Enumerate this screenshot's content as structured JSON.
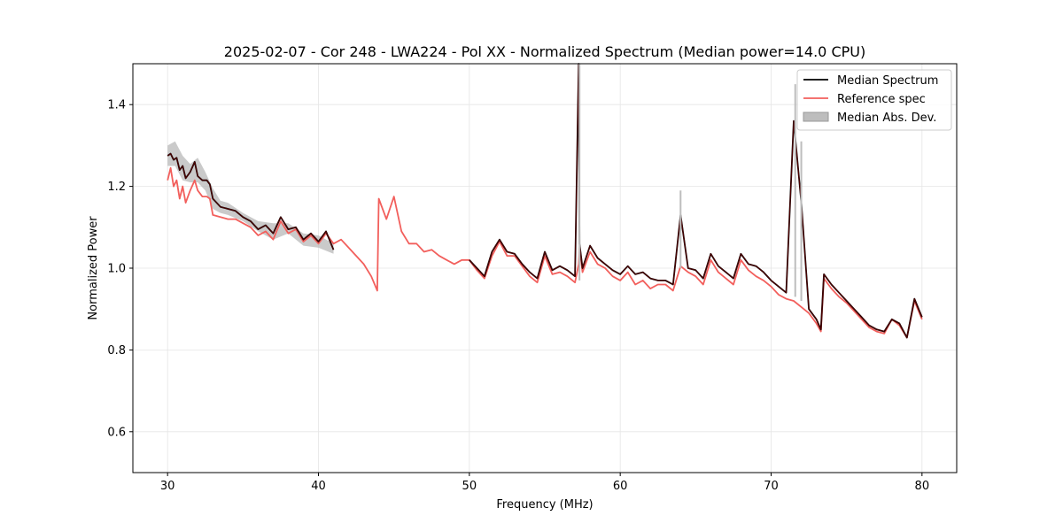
{
  "chart_data": {
    "type": "line",
    "title": "2025-02-07 - Cor 248 - LWA224 - Pol XX - Normalized Spectrum (Median power=14.0 CPU)",
    "xlabel": "Frequency (MHz)",
    "ylabel": "Normalized Power",
    "xlim": [
      27.7,
      82.3
    ],
    "ylim": [
      0.5,
      1.5
    ],
    "xticks": [
      30,
      40,
      50,
      60,
      70,
      80
    ],
    "yticks": [
      0.6,
      0.8,
      1.0,
      1.2,
      1.4
    ],
    "grid": true,
    "legend_position": "top-right",
    "legend": [
      "Median Spectrum",
      "Reference spec",
      "Median Abs. Dev."
    ],
    "colors": {
      "median": "#000000",
      "reference": "#f25f5c",
      "mad": "#bdbdbd",
      "overlap": "#8b0000"
    },
    "series": [
      {
        "name": "Reference spec",
        "x": [
          30.0,
          30.2,
          30.4,
          30.6,
          30.8,
          31.0,
          31.2,
          31.5,
          31.8,
          32.0,
          32.3,
          32.6,
          32.8,
          33.0,
          33.5,
          34.0,
          34.5,
          35.0,
          35.5,
          36.0,
          36.5,
          37.0,
          37.5,
          38.0,
          38.5,
          39.0,
          39.5,
          40.0,
          40.5,
          41.0,
          41.5,
          42.0,
          42.5,
          43.0,
          43.5,
          43.9,
          44.0,
          44.5,
          45.0,
          45.5,
          46.0,
          46.5,
          47.0,
          47.5,
          48.0,
          48.5,
          49.0,
          49.5,
          50.0,
          50.5,
          51.0,
          51.5,
          52.0,
          52.5,
          53.0,
          53.5,
          54.0,
          54.5,
          55.0,
          55.5,
          56.0,
          56.5,
          57.0,
          57.25,
          57.3,
          57.5,
          58.0,
          58.5,
          59.0,
          59.5,
          60.0,
          60.5,
          61.0,
          61.5,
          62.0,
          62.5,
          63.0,
          63.5,
          64.0,
          64.5,
          65.0,
          65.5,
          66.0,
          66.5,
          67.0,
          67.5,
          68.0,
          68.5,
          69.0,
          69.5,
          70.0,
          70.5,
          71.0,
          71.5,
          72.0,
          72.5,
          73.0,
          73.3,
          73.5,
          74.0,
          74.5,
          75.0,
          75.5,
          76.0,
          76.5,
          77.0,
          77.5,
          78.0,
          78.5,
          79.0,
          79.5,
          80.0
        ],
        "values": [
          1.215,
          1.245,
          1.2,
          1.215,
          1.17,
          1.2,
          1.16,
          1.19,
          1.215,
          1.19,
          1.175,
          1.175,
          1.17,
          1.13,
          1.125,
          1.12,
          1.12,
          1.11,
          1.1,
          1.08,
          1.09,
          1.07,
          1.115,
          1.085,
          1.095,
          1.065,
          1.08,
          1.06,
          1.085,
          1.06,
          1.07,
          1.05,
          1.03,
          1.01,
          0.98,
          0.945,
          1.17,
          1.12,
          1.175,
          1.09,
          1.06,
          1.06,
          1.04,
          1.045,
          1.03,
          1.02,
          1.01,
          1.02,
          1.02,
          0.995,
          0.975,
          1.03,
          1.065,
          1.03,
          1.03,
          1.005,
          0.98,
          0.965,
          1.03,
          0.985,
          0.99,
          0.98,
          0.965,
          1.01,
          1.05,
          0.99,
          1.04,
          1.01,
          1.0,
          0.98,
          0.97,
          0.99,
          0.96,
          0.97,
          0.95,
          0.96,
          0.96,
          0.945,
          1.005,
          0.99,
          0.98,
          0.96,
          1.02,
          0.99,
          0.975,
          0.96,
          1.02,
          0.995,
          0.98,
          0.97,
          0.955,
          0.935,
          0.925,
          0.92,
          0.905,
          0.89,
          0.865,
          0.845,
          0.975,
          0.95,
          0.93,
          0.915,
          0.895,
          0.875,
          0.855,
          0.845,
          0.84,
          0.875,
          0.86,
          0.83,
          0.92,
          0.875
        ]
      },
      {
        "name": "Median Spectrum",
        "x": [
          30.0,
          30.2,
          30.4,
          30.6,
          30.8,
          31.0,
          31.2,
          31.5,
          31.8,
          32.0,
          32.3,
          32.6,
          32.8,
          33.0,
          33.5,
          34.0,
          34.5,
          35.0,
          35.5,
          36.0,
          36.5,
          37.0,
          37.5,
          38.0,
          38.5,
          39.0,
          39.5,
          40.0,
          40.5,
          41.0,
          50.0,
          50.5,
          51.0,
          51.5,
          52.0,
          52.5,
          53.0,
          53.5,
          54.0,
          54.5,
          55.0,
          55.5,
          56.0,
          56.5,
          57.0,
          57.25,
          57.3,
          57.5,
          58.0,
          58.5,
          59.0,
          59.5,
          60.0,
          60.5,
          61.0,
          61.5,
          62.0,
          62.5,
          63.0,
          63.5,
          64.0,
          64.5,
          65.0,
          65.5,
          66.0,
          66.5,
          67.0,
          67.5,
          68.0,
          68.5,
          69.0,
          69.5,
          70.0,
          70.5,
          71.0,
          71.5,
          72.0,
          72.5,
          73.0,
          73.3,
          73.5,
          74.0,
          74.5,
          75.0,
          75.5,
          76.0,
          76.5,
          77.0,
          77.5,
          78.0,
          78.5,
          79.0,
          79.5,
          80.0
        ],
        "values": [
          1.275,
          1.28,
          1.265,
          1.27,
          1.24,
          1.25,
          1.22,
          1.235,
          1.26,
          1.225,
          1.215,
          1.215,
          1.205,
          1.17,
          1.15,
          1.145,
          1.14,
          1.125,
          1.115,
          1.095,
          1.105,
          1.085,
          1.125,
          1.095,
          1.1,
          1.07,
          1.085,
          1.065,
          1.09,
          1.045,
          1.02,
          1.0,
          0.98,
          1.04,
          1.07,
          1.04,
          1.035,
          1.01,
          0.99,
          0.975,
          1.04,
          0.995,
          1.005,
          0.995,
          0.98,
          1.5,
          1.06,
          1.0,
          1.055,
          1.025,
          1.01,
          0.995,
          0.985,
          1.005,
          0.985,
          0.99,
          0.975,
          0.97,
          0.97,
          0.96,
          1.13,
          1.0,
          0.995,
          0.975,
          1.035,
          1.005,
          0.99,
          0.975,
          1.035,
          1.01,
          1.005,
          0.99,
          0.97,
          0.955,
          0.94,
          1.36,
          1.16,
          0.9,
          0.875,
          0.85,
          0.985,
          0.96,
          0.94,
          0.92,
          0.9,
          0.88,
          0.86,
          0.85,
          0.845,
          0.875,
          0.865,
          0.83,
          0.925,
          0.88
        ]
      },
      {
        "name": "Median Abs. Dev.",
        "x": [
          30.0,
          30.5,
          31.0,
          31.5,
          32.0,
          32.5,
          33.0,
          33.5,
          34.0,
          35.0,
          36.0,
          37.0,
          38.0,
          39.0,
          40.0,
          41.0
        ],
        "upper": [
          1.3,
          1.31,
          1.275,
          1.255,
          1.27,
          1.235,
          1.195,
          1.165,
          1.16,
          1.135,
          1.115,
          1.11,
          1.11,
          1.085,
          1.08,
          1.06
        ],
        "lower": [
          1.25,
          1.25,
          1.215,
          1.21,
          1.21,
          1.19,
          1.145,
          1.135,
          1.13,
          1.115,
          1.09,
          1.07,
          1.085,
          1.055,
          1.05,
          1.035
        ]
      }
    ],
    "spikes": [
      {
        "x": 57.3,
        "top": 1.5,
        "base": 0.97
      },
      {
        "x": 64.0,
        "top": 1.19,
        "base": 1.0
      },
      {
        "x": 71.6,
        "top": 1.45,
        "base": 0.93
      },
      {
        "x": 72.0,
        "top": 1.31,
        "base": 0.92
      }
    ]
  }
}
